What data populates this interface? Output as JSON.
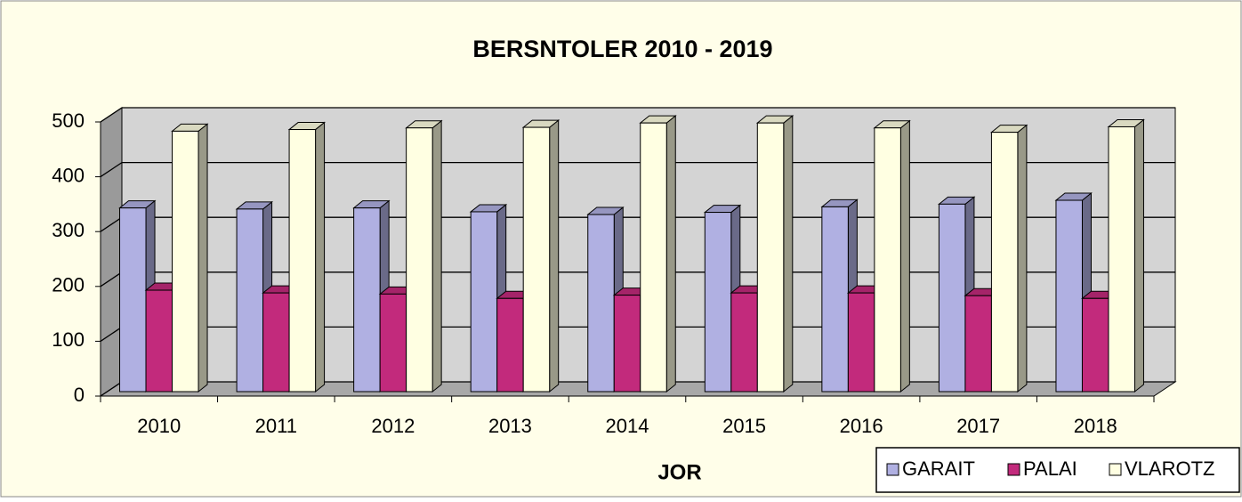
{
  "chart_data": {
    "type": "bar3d",
    "title": "BERSNTOLER 2010 - 2019",
    "x_label": "JOR",
    "categories": [
      "2010",
      "2011",
      "2012",
      "2013",
      "2014",
      "2015",
      "2016",
      "2017",
      "2018"
    ],
    "series": [
      {
        "name": "GARAIT",
        "color": "#b0b0e2",
        "values": [
          335,
          333,
          335,
          328,
          323,
          327,
          337,
          342,
          349
        ]
      },
      {
        "name": "PALAI",
        "color": "#c22a7c",
        "values": [
          185,
          180,
          178,
          170,
          176,
          180,
          180,
          175,
          170
        ]
      },
      {
        "name": "VLAROTZ",
        "color": "#ffffe2",
        "values": [
          475,
          478,
          481,
          482,
          490,
          490,
          481,
          473,
          483
        ]
      }
    ],
    "ylim": [
      0,
      500
    ],
    "yticks": [
      0,
      100,
      200,
      300,
      400,
      500
    ],
    "grid": true,
    "legend": "bottom-right"
  }
}
